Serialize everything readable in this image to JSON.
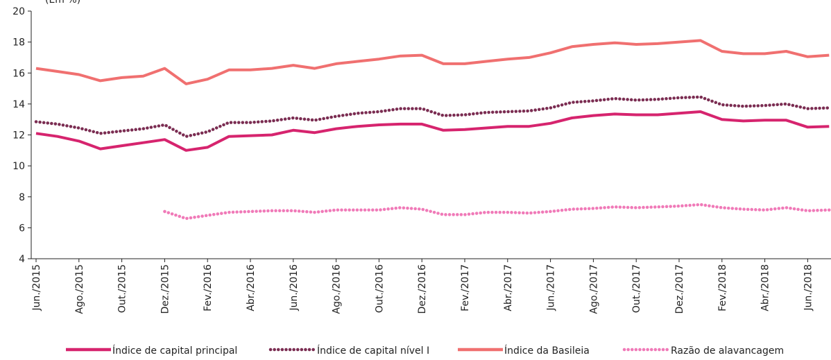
{
  "chart_data": {
    "type": "line",
    "y_label": "(Em %)",
    "categories": [
      "Jun./2015",
      null,
      "Ago./2015",
      null,
      "Out./2015",
      null,
      "Dez./2015",
      null,
      "Fev./2016",
      null,
      "Abr./2016",
      null,
      "Jun./2016",
      null,
      "Ago./2016",
      null,
      "Out./2016",
      null,
      "Dez./2016",
      null,
      "Fev./2017",
      null,
      "Abr./2017",
      null,
      "Jun./2017",
      null,
      "Ago./2017",
      null,
      "Out./2017",
      null,
      "Dez./2017",
      null,
      "Fev./2018",
      null,
      "Abr./2018",
      null,
      "Jun./2018",
      null
    ],
    "ylim": [
      4,
      20
    ],
    "yticks": [
      4,
      6,
      8,
      10,
      12,
      14,
      16,
      18,
      20
    ],
    "grid": false,
    "series": [
      {
        "name": "Índice de capital principal",
        "color": "#d6246e",
        "style": "solid",
        "values": [
          12.1,
          11.9,
          11.6,
          11.1,
          11.3,
          11.5,
          11.7,
          11.0,
          11.2,
          11.9,
          11.95,
          12.0,
          12.3,
          12.15,
          12.4,
          12.55,
          12.65,
          12.7,
          12.7,
          12.3,
          12.35,
          12.45,
          12.55,
          12.55,
          12.75,
          13.1,
          13.25,
          13.35,
          13.3,
          13.3,
          13.4,
          13.5,
          13.0,
          12.9,
          12.95,
          12.95,
          12.5,
          12.55
        ]
      },
      {
        "name": "Índice de capital nível I",
        "color": "#7b2d52",
        "style": "dotted",
        "values": [
          12.85,
          12.7,
          12.45,
          12.1,
          12.25,
          12.4,
          12.65,
          11.9,
          12.2,
          12.8,
          12.8,
          12.9,
          13.1,
          12.95,
          13.2,
          13.4,
          13.5,
          13.7,
          13.7,
          13.25,
          13.3,
          13.45,
          13.5,
          13.55,
          13.75,
          14.1,
          14.2,
          14.35,
          14.25,
          14.3,
          14.4,
          14.45,
          13.95,
          13.85,
          13.9,
          14.0,
          13.7,
          13.75
        ]
      },
      {
        "name": "Índice da Basileia",
        "color": "#f07070",
        "style": "solid",
        "values": [
          16.3,
          16.1,
          15.9,
          15.5,
          15.7,
          15.8,
          16.3,
          15.3,
          15.6,
          16.2,
          16.2,
          16.3,
          16.5,
          16.3,
          16.6,
          16.75,
          16.9,
          17.1,
          17.15,
          16.6,
          16.6,
          16.75,
          16.9,
          17.0,
          17.3,
          17.7,
          17.85,
          17.95,
          17.85,
          17.9,
          18.0,
          18.1,
          17.4,
          17.25,
          17.25,
          17.4,
          17.05,
          17.15
        ]
      },
      {
        "name": "Razão de alavancagem",
        "color": "#f07ab8",
        "style": "dotted",
        "values": [
          null,
          null,
          null,
          null,
          null,
          null,
          7.05,
          6.6,
          6.8,
          7.0,
          7.05,
          7.1,
          7.1,
          7.0,
          7.15,
          7.15,
          7.15,
          7.3,
          7.2,
          6.85,
          6.85,
          7.0,
          7.0,
          6.95,
          7.05,
          7.2,
          7.25,
          7.35,
          7.3,
          7.35,
          7.4,
          7.5,
          7.3,
          7.2,
          7.15,
          7.3,
          7.1,
          7.15
        ]
      }
    ]
  }
}
